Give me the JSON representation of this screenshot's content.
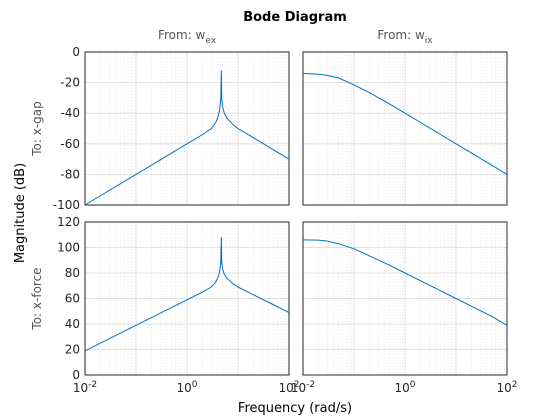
{
  "figure": {
    "title": "Bode Diagram",
    "xlabel": "Frequency  (rad/s)",
    "ylabel": "Magnitude (dB)"
  },
  "chart_data": {
    "type": "line",
    "title": "Bode Diagram",
    "xlabel": "Frequency  (rad/s)",
    "ylabel": "Magnitude (dB)",
    "xscale": "log",
    "xlim": [
      0.01,
      100
    ],
    "x_ticks": [
      {
        "value": 0.01,
        "base": "10",
        "exp": "-2"
      },
      {
        "value": 1,
        "base": "10",
        "exp": "0"
      },
      {
        "value": 100,
        "base": "10",
        "exp": "2"
      }
    ],
    "grid": true,
    "columns": [
      {
        "from_label": "From: w",
        "from_sub": "ex"
      },
      {
        "from_label": "From: w",
        "from_sub": "ix"
      }
    ],
    "rows": [
      {
        "to_label": "To: x-gap",
        "ylim": [
          -100,
          0
        ],
        "y_ticks": [
          0,
          -20,
          -40,
          -60,
          -80,
          -100
        ]
      },
      {
        "to_label": "To: x-force",
        "ylim": [
          0,
          120
        ],
        "y_ticks": [
          120,
          100,
          80,
          60,
          40,
          20,
          0
        ]
      }
    ],
    "panels": [
      {
        "row": 0,
        "col": 0,
        "name": "x-gap from w_ex",
        "x": [
          0.01,
          0.1,
          1,
          2,
          3,
          3.6,
          4.0,
          4.3,
          4.5,
          4.6,
          4.7,
          4.8,
          5.0,
          5.4,
          6.0,
          8,
          10,
          20,
          50,
          100
        ],
        "y": [
          -100,
          -80,
          -60,
          -54,
          -50,
          -46.5,
          -43,
          -39,
          -34,
          -30,
          -12,
          -31,
          -36,
          -40,
          -43,
          -47.5,
          -50,
          -56,
          -64,
          -70
        ]
      },
      {
        "row": 0,
        "col": 1,
        "name": "x-gap from w_ix",
        "x": [
          0.01,
          0.02,
          0.03,
          0.05,
          0.1,
          0.2,
          0.5,
          1,
          2,
          5,
          10,
          20,
          50,
          100
        ],
        "y": [
          -14,
          -14.5,
          -15.3,
          -17,
          -21.5,
          -26.5,
          -34,
          -40,
          -46,
          -54,
          -60,
          -66,
          -74,
          -80
        ]
      },
      {
        "row": 1,
        "col": 0,
        "name": "x-force from w_ex",
        "x": [
          0.01,
          0.1,
          1,
          2,
          3,
          3.6,
          4.0,
          4.3,
          4.5,
          4.6,
          4.7,
          4.8,
          5.0,
          5.4,
          6.0,
          8,
          10,
          20,
          50,
          100
        ],
        "y": [
          19,
          39,
          59,
          65,
          69,
          72.5,
          76,
          80,
          85,
          89,
          108,
          88,
          83,
          79,
          76,
          71.5,
          69,
          63,
          55,
          49
        ]
      },
      {
        "row": 1,
        "col": 1,
        "name": "x-force from w_ix",
        "x": [
          0.01,
          0.02,
          0.03,
          0.05,
          0.1,
          0.2,
          0.5,
          1,
          2,
          5,
          10,
          20,
          50,
          100
        ],
        "y": [
          106,
          105.8,
          105,
          103,
          99,
          93.5,
          86,
          80,
          74,
          66,
          60,
          54,
          46,
          39
        ]
      }
    ]
  }
}
